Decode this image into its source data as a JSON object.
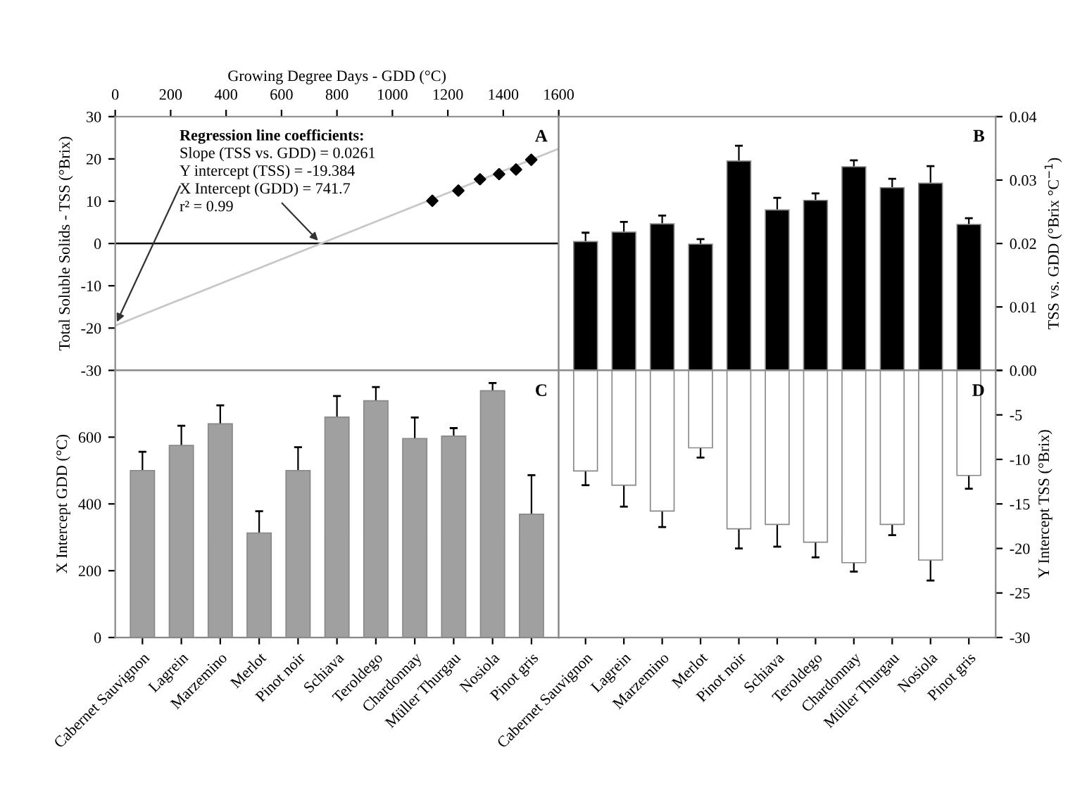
{
  "chart_data": [
    {
      "type": "scatter",
      "xlabel": "Growing Degree Days - GDD (°C)",
      "ylabel": "Total Soluble Solids - TSS (°Brix)",
      "xlim": [
        0,
        1600
      ],
      "xticks": [
        0,
        200,
        400,
        600,
        800,
        1000,
        1200,
        1400,
        1600
      ],
      "ylim": [
        -30,
        30
      ],
      "yticks": [
        -30,
        -20,
        -10,
        0,
        10,
        20,
        30
      ],
      "series": [
        {
          "type": "scatter",
          "x": [
            1144,
            1238,
            1316,
            1385,
            1446,
            1501
          ],
          "values": [
            10.1,
            12.5,
            15.2,
            16.4,
            17.5,
            19.8
          ],
          "color": "#000000",
          "marker": "diamond"
        },
        {
          "type": "line",
          "x": [
            0,
            1600
          ],
          "values": [
            -19.4,
            22.4
          ],
          "color": "#c8c8c8",
          "line_style": "solid"
        }
      ],
      "ref_lines": [
        {
          "axis": "y",
          "value": 0,
          "color": "#000000"
        }
      ],
      "annotations": [
        "Regression line coefficients:",
        "Slope (TSS vs. GDD) = 0.0261",
        {
          "text": "Y intercept (TSS) = -19.384",
          "x": 0,
          "y": -19.384
        },
        {
          "text": "X Intercept (GDD) = 741.7",
          "x": 741.7,
          "y": 0
        },
        "r² = 0.99",
        "A"
      ]
    },
    {
      "type": "bar",
      "y2label": "TSS vs. GDD (°Brix °C$^{−1}$)",
      "tick_labels": "y",
      "categories": [
        null,
        null,
        null,
        null,
        null,
        null,
        null,
        null,
        null,
        null,
        null
      ],
      "ylim": [
        0,
        0.04
      ],
      "yticks": [
        {
          "value": 0,
          "label": "0.00"
        },
        0.01,
        0.02,
        0.03,
        0.04
      ],
      "values": [
        0.0203,
        0.0218,
        0.0231,
        0.0199,
        0.033,
        0.0253,
        0.0268,
        0.0321,
        0.0288,
        0.0295,
        0.023
      ],
      "errors": [
        0.0014,
        0.0016,
        0.0013,
        0.0008,
        0.0024,
        0.0019,
        0.0011,
        0.001,
        0.0014,
        0.0027,
        0.001
      ],
      "color": "#000000",
      "annotations": [
        "B"
      ]
    },
    {
      "type": "bar",
      "ylabel": "X Intercept GDD (°C)",
      "categories": [
        "Cabernet Sauvignon",
        "Lagrein",
        "Marzemino",
        "Merlot",
        "Pinot noir",
        "Schiava",
        "Teroldego",
        "Chardonnay",
        "Müller Thurgau",
        "Nosiola",
        "Pinot gris"
      ],
      "ylim": [
        0,
        800
      ],
      "yticks": [
        0,
        200,
        400,
        600
      ],
      "values": [
        500,
        575,
        640,
        313,
        500,
        660,
        709,
        596,
        603,
        739,
        369
      ],
      "errors": [
        56,
        59,
        55,
        65,
        70,
        63,
        41,
        63,
        24,
        23,
        117
      ],
      "color": "#a0a0a0",
      "annotations": [
        "C"
      ]
    },
    {
      "type": "bar",
      "y2label": "Y Intercept TSS (°Brix)",
      "categories": [
        "Cabernet Sauvignon",
        "Lagrein",
        "Marzemino",
        "Merlot",
        "Pinot noir",
        "Schiava",
        "Teroldego",
        "Chardonnay",
        "Müller Thurgau",
        "Nosiola",
        "Pinot gris"
      ],
      "ylim": [
        -30,
        0
      ],
      "yticks": [
        {
          "value": 0,
          "label": null
        },
        -5,
        -10,
        -15,
        -20,
        -25,
        -30
      ],
      "values": [
        -11.3,
        -12.9,
        -15.8,
        -8.7,
        -17.8,
        -17.3,
        -19.3,
        -21.6,
        -17.3,
        -21.3,
        -11.8
      ],
      "errors": [
        1.6,
        2.4,
        1.8,
        1.1,
        2.2,
        2.5,
        1.7,
        1.0,
        1.2,
        2.3,
        1.5
      ],
      "color": "#ffffff",
      "annotations": [
        "D"
      ]
    }
  ]
}
